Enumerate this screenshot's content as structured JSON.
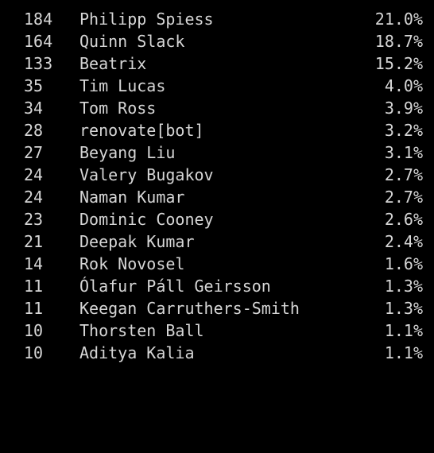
{
  "shortlog": {
    "rows": [
      {
        "count": "184",
        "name": "Philipp Spiess",
        "percent": "21.0%"
      },
      {
        "count": "164",
        "name": "Quinn Slack",
        "percent": "18.7%"
      },
      {
        "count": "133",
        "name": "Beatrix",
        "percent": "15.2%"
      },
      {
        "count": "35",
        "name": "Tim Lucas",
        "percent": "4.0%"
      },
      {
        "count": "34",
        "name": "Tom Ross",
        "percent": "3.9%"
      },
      {
        "count": "28",
        "name": "renovate[bot]",
        "percent": "3.2%"
      },
      {
        "count": "27",
        "name": "Beyang Liu",
        "percent": "3.1%"
      },
      {
        "count": "24",
        "name": "Valery Bugakov",
        "percent": "2.7%"
      },
      {
        "count": "24",
        "name": "Naman Kumar",
        "percent": "2.7%"
      },
      {
        "count": "23",
        "name": "Dominic Cooney",
        "percent": "2.6%"
      },
      {
        "count": "21",
        "name": "Deepak Kumar",
        "percent": "2.4%"
      },
      {
        "count": "14",
        "name": "Rok Novosel",
        "percent": "1.6%"
      },
      {
        "count": "11",
        "name": "Ólafur Páll Geirsson",
        "percent": "1.3%"
      },
      {
        "count": "11",
        "name": "Keegan Carruthers-Smith",
        "percent": "1.3%"
      },
      {
        "count": "10",
        "name": "Thorsten Ball",
        "percent": "1.1%"
      },
      {
        "count": "10",
        "name": "Aditya Kalia",
        "percent": "1.1%"
      }
    ]
  },
  "colors": {
    "background": "#000000",
    "text": "#d6d6d6"
  }
}
